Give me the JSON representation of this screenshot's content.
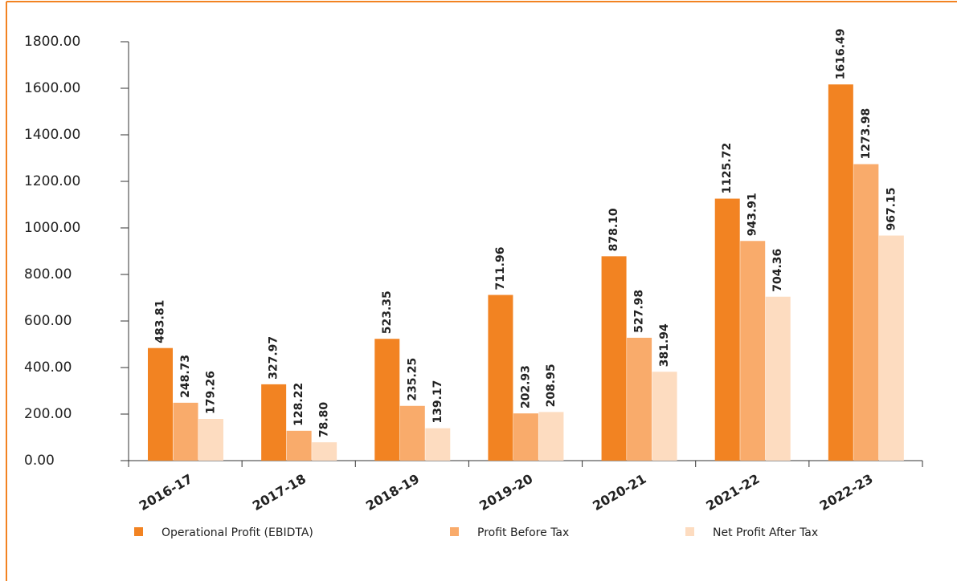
{
  "chart_data": {
    "type": "bar",
    "categories": [
      "2016-17",
      "2017-18",
      "2018-19",
      "2019-20",
      "2020-21",
      "2021-22",
      "2022-23"
    ],
    "series": [
      {
        "name": "Operational Profit (EBIDTA)",
        "color": "#f28322",
        "values": [
          483.81,
          327.97,
          523.35,
          711.96,
          878.1,
          1125.72,
          1616.49
        ],
        "value_labels": [
          "483.81",
          "327.97",
          "523.35",
          "711.96",
          "878.10",
          "1125.72",
          "1616.49"
        ]
      },
      {
        "name": "Profit Before Tax",
        "color": "#f9ab6b",
        "values": [
          248.73,
          128.22,
          235.25,
          202.93,
          527.98,
          943.91,
          1273.98
        ],
        "value_labels": [
          "248.73",
          "128.22",
          "235.25",
          "202.93",
          "527.98",
          "943.91",
          "1273.98"
        ]
      },
      {
        "name": "Net Profit After Tax",
        "color": "#fddcc0",
        "values": [
          179.26,
          78.8,
          139.17,
          208.95,
          381.94,
          704.36,
          967.15
        ],
        "value_labels": [
          "179.26",
          "78.80",
          "139.17",
          "208.95",
          "381.94",
          "704.36",
          "967.15"
        ]
      }
    ],
    "ylim": [
      0,
      1800
    ],
    "yticks": [
      {
        "value": 0,
        "label": "0.00"
      },
      {
        "value": 200,
        "label": "200.00"
      },
      {
        "value": 400,
        "label": "400.00"
      },
      {
        "value": 600,
        "label": "600.00"
      },
      {
        "value": 800,
        "label": "800.00"
      },
      {
        "value": 1000,
        "label": "1000.00"
      },
      {
        "value": 1200,
        "label": "1200.00"
      },
      {
        "value": 1400,
        "label": "1400.00"
      },
      {
        "value": 1600,
        "label": "1600.00"
      },
      {
        "value": 1800,
        "label": "1800.00"
      }
    ],
    "legend": "bottom"
  }
}
